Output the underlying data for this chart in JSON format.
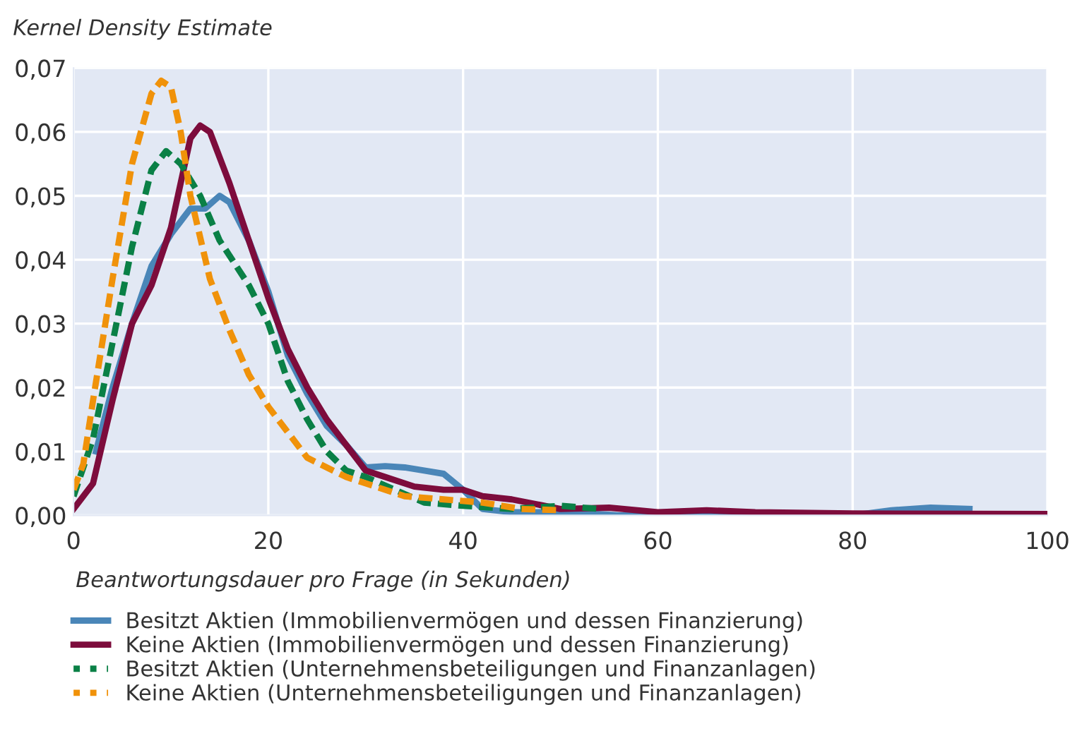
{
  "chart_data": {
    "type": "line",
    "ylabel": "Kernel Density Estimate",
    "xlabel": "Beantwortungsdauer pro Frage (in Sekunden)",
    "xlim": [
      0,
      100
    ],
    "xticks": [
      0,
      20,
      40,
      60,
      80,
      100
    ],
    "ylim": [
      0,
      0.07
    ],
    "yticks": [
      {
        "value": 0,
        "label": "0,00"
      },
      {
        "value": 0.01,
        "label": "0,01"
      },
      {
        "value": 0.02,
        "label": "0,02"
      },
      {
        "value": 0.03,
        "label": "0,03"
      },
      {
        "value": 0.04,
        "label": "0,04"
      },
      {
        "value": 0.05,
        "label": "0,05"
      },
      {
        "value": 0.06,
        "label": "0,06"
      },
      {
        "value": 0.07,
        "label": "0,07"
      }
    ],
    "grid": true,
    "legend": "bottom",
    "marker": "none",
    "series": [
      {
        "name": "Besitzt Aktien (Immobilienvermögen und dessen Finanzierung)",
        "color": "#4a86b8",
        "line_style": "solid",
        "x": [
          2.3,
          4,
          6,
          8,
          10,
          12,
          13.5,
          15,
          16,
          18,
          20,
          22,
          24,
          26,
          28,
          30,
          32,
          34,
          36,
          38,
          40,
          42,
          45,
          50,
          54,
          56,
          80,
          84,
          88,
          92
        ],
        "values": [
          0.01,
          0.02,
          0.03,
          0.039,
          0.044,
          0.048,
          0.048,
          0.05,
          0.049,
          0.043,
          0.035,
          0.025,
          0.019,
          0.014,
          0.011,
          0.0075,
          0.0077,
          0.0075,
          0.007,
          0.0065,
          0.004,
          0.001,
          0.0005,
          0.0005,
          0.0002,
          0,
          0,
          0.0008,
          0.0012,
          0.001
        ]
      },
      {
        "name": "Keine Aktien (Immobilienvermögen und dessen Finanzierung)",
        "color": "#7d0c3c",
        "line_style": "solid",
        "x": [
          0,
          2,
          4,
          6,
          8,
          10,
          12,
          13,
          14,
          16,
          18,
          20,
          22,
          24,
          26,
          28,
          30,
          32,
          35,
          38,
          40,
          42,
          45,
          50,
          55,
          60,
          65,
          70,
          80,
          100
        ],
        "values": [
          0.001,
          0.005,
          0.018,
          0.03,
          0.036,
          0.045,
          0.059,
          0.061,
          0.06,
          0.052,
          0.043,
          0.034,
          0.026,
          0.02,
          0.015,
          0.011,
          0.007,
          0.006,
          0.0045,
          0.004,
          0.004,
          0.003,
          0.0025,
          0.001,
          0.0012,
          0.0005,
          0.0008,
          0.0005,
          0.0003,
          0.0002
        ]
      },
      {
        "name": "Besitzt Aktien (Unternehmensbeteiligungen und Finanzanlagen)",
        "color": "#0a8046",
        "line_style": "dashed",
        "x": [
          0,
          2,
          4,
          6,
          8,
          9.5,
          11,
          13,
          15,
          18,
          20,
          22,
          24,
          26,
          28,
          30,
          33,
          36,
          40,
          45,
          50,
          54
        ],
        "values": [
          0.003,
          0.012,
          0.027,
          0.042,
          0.054,
          0.057,
          0.055,
          0.05,
          0.043,
          0.036,
          0.03,
          0.021,
          0.015,
          0.01,
          0.007,
          0.006,
          0.004,
          0.002,
          0.0015,
          0.001,
          0.0015,
          0.001
        ]
      },
      {
        "name": "Keine Aktien (Unternehmensbeteiligungen und Finanzanlagen)",
        "color": "#f0920a",
        "line_style": "dashed",
        "x": [
          0,
          1,
          2,
          4,
          6,
          8,
          9,
          10,
          11,
          12,
          14,
          16,
          18,
          20,
          22,
          24,
          26,
          28,
          30,
          34,
          38,
          42,
          46,
          50
        ],
        "values": [
          0.004,
          0.008,
          0.018,
          0.037,
          0.055,
          0.066,
          0.068,
          0.067,
          0.06,
          0.05,
          0.037,
          0.029,
          0.022,
          0.017,
          0.013,
          0.009,
          0.0075,
          0.006,
          0.005,
          0.003,
          0.0025,
          0.002,
          0.001,
          0.0008
        ]
      }
    ]
  }
}
